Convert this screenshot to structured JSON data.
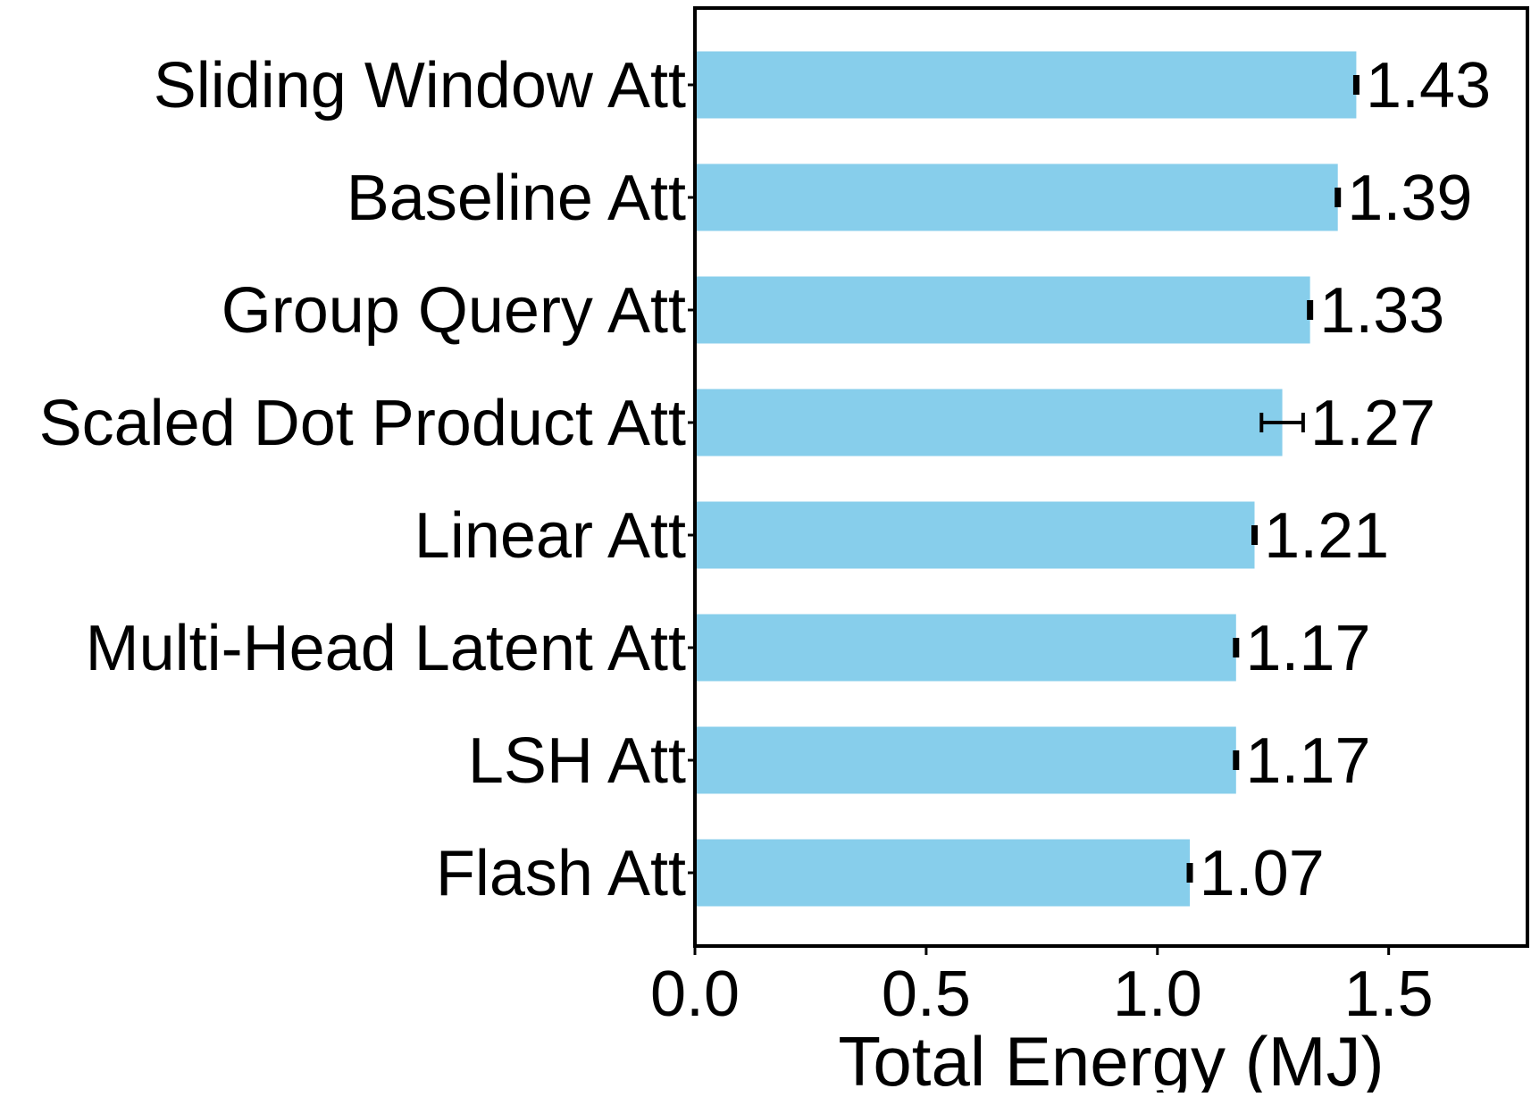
{
  "chart_data": {
    "type": "bar",
    "orientation": "horizontal",
    "title": "",
    "xlabel": "Total Energy (MJ)",
    "ylabel": "",
    "xlim": [
      0,
      1.8
    ],
    "xticks": [
      0.0,
      0.5,
      1.0,
      1.5
    ],
    "xtick_labels": [
      "0.0",
      "0.5",
      "1.0",
      "1.5"
    ],
    "grid": false,
    "legend": "none",
    "bar_color": "#87CEEB",
    "errorbar_color": "#000000",
    "categories": [
      "Sliding Window Att",
      "Baseline Att",
      "Group Query Att",
      "Scaled Dot Product Att",
      "Linear Att",
      "Multi-Head Latent Att",
      "LSH Att",
      "Flash Att"
    ],
    "values": [
      1.43,
      1.39,
      1.33,
      1.27,
      1.21,
      1.17,
      1.17,
      1.07
    ],
    "value_labels": [
      "1.43",
      "1.39",
      "1.33",
      "1.27",
      "1.21",
      "1.17",
      "1.17",
      "1.07"
    ],
    "errors": [
      0.005,
      0.005,
      0.005,
      0.045,
      0.005,
      0.005,
      0.005,
      0.005
    ]
  }
}
